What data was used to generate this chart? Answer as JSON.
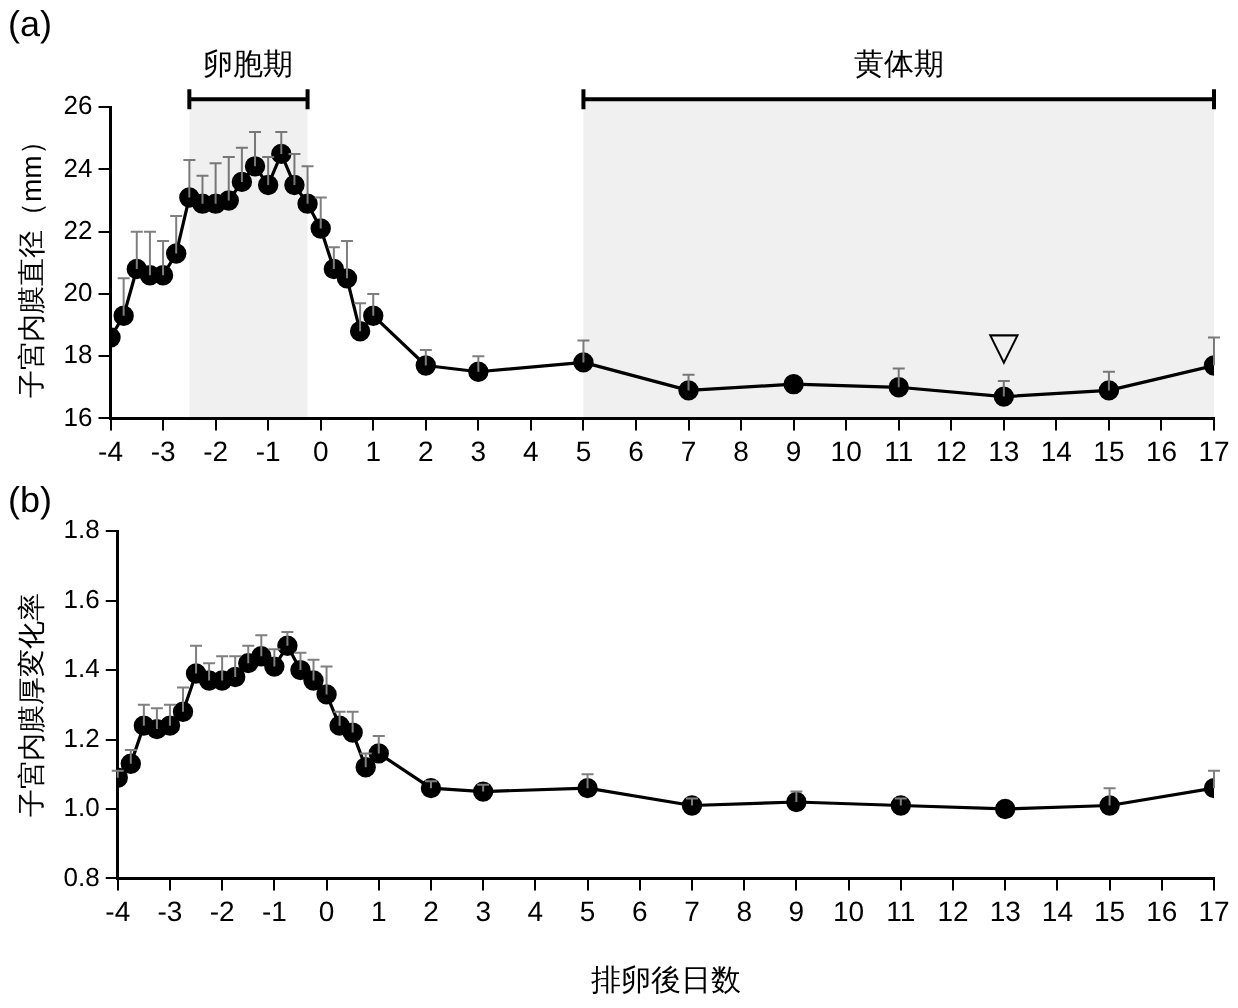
{
  "chart_data": [
    {
      "type": "line",
      "title": "(a)",
      "ylabel": "子宮内膜直径（mm）",
      "x": [
        -4,
        -3.75,
        -3.5,
        -3.25,
        -3,
        -2.75,
        -2.5,
        -2.25,
        -2,
        -1.75,
        -1.5,
        -1.25,
        -1,
        -0.75,
        -0.5,
        -0.25,
        0,
        0.25,
        0.5,
        0.75,
        1,
        2,
        3,
        5,
        7,
        9,
        11,
        13,
        15,
        17
      ],
      "series": [
        {
          "color": "#000000",
          "values": [
            18.6,
            19.3,
            20.8,
            20.6,
            20.6,
            21.3,
            23.1,
            22.9,
            22.9,
            23.0,
            23.6,
            24.1,
            23.5,
            24.5,
            23.5,
            22.9,
            22.1,
            20.8,
            20.5,
            18.8,
            19.3,
            17.7,
            17.5,
            17.8,
            16.9,
            17.1,
            17.0,
            16.7,
            16.9,
            17.7
          ],
          "errors": [
            null,
            [
              19.3,
              20.5
            ],
            [
              20.8,
              22.0
            ],
            [
              20.6,
              22.0
            ],
            [
              20.6,
              21.7
            ],
            [
              21.3,
              22.5
            ],
            [
              23.1,
              24.3
            ],
            [
              22.9,
              23.8
            ],
            [
              22.9,
              24.2
            ],
            [
              23.0,
              24.4
            ],
            [
              23.6,
              24.7
            ],
            [
              24.1,
              25.2
            ],
            [
              23.5,
              24.4
            ],
            [
              24.5,
              25.2
            ],
            [
              23.5,
              24.5
            ],
            [
              22.9,
              24.1
            ],
            [
              22.1,
              23.1
            ],
            [
              20.8,
              21.5
            ],
            [
              20.5,
              21.7
            ],
            [
              18.8,
              19.7
            ],
            [
              19.3,
              20.0
            ],
            [
              17.7,
              18.2
            ],
            [
              17.5,
              18.0
            ],
            [
              17.8,
              18.5
            ],
            [
              16.9,
              17.4
            ],
            null,
            [
              17.0,
              17.6
            ],
            [
              16.7,
              17.2
            ],
            [
              16.9,
              17.5
            ],
            [
              17.7,
              18.6
            ]
          ]
        }
      ],
      "xlim": [
        -4,
        17
      ],
      "xticks": [
        -4,
        -3,
        -2,
        -1,
        0,
        1,
        2,
        3,
        4,
        5,
        6,
        7,
        8,
        9,
        10,
        11,
        12,
        13,
        14,
        15,
        16,
        17
      ],
      "ylim": [
        16,
        26
      ],
      "yticks": [
        16,
        18,
        20,
        22,
        24,
        26
      ],
      "bands": [
        {
          "axis": "x",
          "from": -2.5,
          "to": -0.25,
          "label": "卵胞期"
        },
        {
          "axis": "x",
          "from": 5,
          "to": 17,
          "label": "黄体期"
        }
      ],
      "annotations": [
        {
          "text": "▽",
          "x": 13,
          "y": 16.7
        }
      ],
      "grid": false,
      "legend": false,
      "marker": "circle",
      "line_style": "solid"
    },
    {
      "type": "line",
      "title": "(b)",
      "ylabel": "子宮内膜厚変化率",
      "xlabel": "排卵後日数",
      "x": [
        -4,
        -3.75,
        -3.5,
        -3.25,
        -3,
        -2.75,
        -2.5,
        -2.25,
        -2,
        -1.75,
        -1.5,
        -1.25,
        -1,
        -0.75,
        -0.5,
        -0.25,
        0,
        0.25,
        0.5,
        0.75,
        1,
        2,
        3,
        5,
        7,
        9,
        11,
        13,
        15,
        17
      ],
      "series": [
        {
          "color": "#000000",
          "values": [
            1.09,
            1.13,
            1.24,
            1.23,
            1.24,
            1.28,
            1.39,
            1.37,
            1.37,
            1.38,
            1.42,
            1.44,
            1.41,
            1.47,
            1.4,
            1.37,
            1.33,
            1.24,
            1.22,
            1.12,
            1.16,
            1.06,
            1.05,
            1.06,
            1.01,
            1.02,
            1.01,
            1.0,
            1.01,
            1.06
          ],
          "errors": [
            [
              1.09,
              1.11
            ],
            [
              1.13,
              1.17
            ],
            [
              1.24,
              1.3
            ],
            [
              1.23,
              1.29
            ],
            [
              1.24,
              1.3
            ],
            [
              1.28,
              1.35
            ],
            [
              1.39,
              1.47
            ],
            [
              1.37,
              1.42
            ],
            [
              1.37,
              1.44
            ],
            [
              1.38,
              1.44
            ],
            [
              1.42,
              1.47
            ],
            [
              1.44,
              1.5
            ],
            [
              1.41,
              1.46
            ],
            [
              1.47,
              1.51
            ],
            [
              1.4,
              1.45
            ],
            [
              1.37,
              1.43
            ],
            [
              1.33,
              1.41
            ],
            [
              1.24,
              1.28
            ],
            [
              1.22,
              1.28
            ],
            [
              1.12,
              1.16
            ],
            [
              1.16,
              1.21
            ],
            [
              1.06,
              1.08
            ],
            [
              1.05,
              1.07
            ],
            [
              1.06,
              1.1
            ],
            [
              1.01,
              1.03
            ],
            [
              1.02,
              1.05
            ],
            [
              1.01,
              1.03
            ],
            null,
            [
              1.01,
              1.06
            ],
            [
              1.06,
              1.11
            ]
          ]
        }
      ],
      "xlim": [
        -4,
        17
      ],
      "xticks": [
        -4,
        -3,
        -2,
        -1,
        0,
        1,
        2,
        3,
        4,
        5,
        6,
        7,
        8,
        9,
        10,
        11,
        12,
        13,
        14,
        15,
        16,
        17
      ],
      "ylim": [
        0.8,
        1.8
      ],
      "yticks": [
        {
          "value": 0.8,
          "label": "0.8"
        },
        {
          "value": 1.0,
          "label": "1.0"
        },
        {
          "value": 1.2,
          "label": "1.2"
        },
        {
          "value": 1.4,
          "label": "1.4"
        },
        {
          "value": 1.6,
          "label": "1.6"
        },
        {
          "value": 1.8,
          "label": "1.8"
        }
      ],
      "grid": false,
      "legend": false,
      "marker": "circle",
      "line_style": "solid"
    }
  ]
}
